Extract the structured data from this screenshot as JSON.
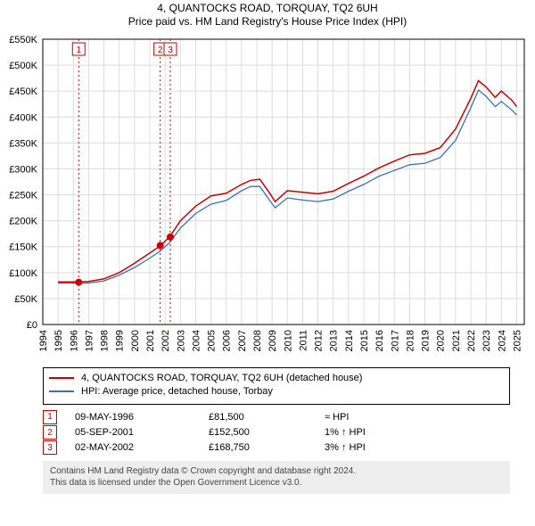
{
  "title_line1": "4, QUANTOCKS ROAD, TORQUAY, TQ2 6UH",
  "title_line2": "Price paid vs. HM Land Registry's House Price Index (HPI)",
  "title_fontsize": 12,
  "chart": {
    "type": "line",
    "background_color": "#ffffff",
    "grid_color": "#dcdcdc",
    "axis_color": "#000000",
    "x_years": [
      1994,
      1995,
      1996,
      1997,
      1998,
      1999,
      2000,
      2001,
      2002,
      2003,
      2004,
      2005,
      2006,
      2007,
      2008,
      2009,
      2010,
      2011,
      2012,
      2013,
      2014,
      2015,
      2016,
      2017,
      2018,
      2019,
      2020,
      2021,
      2022,
      2023,
      2024,
      2025
    ],
    "y_ticks": [
      0,
      50,
      100,
      150,
      200,
      250,
      300,
      350,
      400,
      450,
      500,
      550
    ],
    "y_tick_labels": [
      "£0",
      "£50K",
      "£100K",
      "£150K",
      "£200K",
      "£250K",
      "£300K",
      "£350K",
      "£400K",
      "£450K",
      "£500K",
      "£550K"
    ],
    "y_label_fontsize": 11,
    "x_label_fontsize": 11,
    "xlim": [
      1994,
      2025.5
    ],
    "ylim": [
      0,
      550
    ],
    "series": [
      {
        "name": "price_paid",
        "color": "#cc0000",
        "line_width": 1.5,
        "xy": [
          [
            1995.0,
            82
          ],
          [
            1996.3,
            82
          ],
          [
            1997.0,
            83
          ],
          [
            1998.0,
            88
          ],
          [
            1999.0,
            100
          ],
          [
            2000.0,
            118
          ],
          [
            2001.0,
            138
          ],
          [
            2001.7,
            152
          ],
          [
            2002.3,
            169
          ],
          [
            2003.0,
            200
          ],
          [
            2004.0,
            228
          ],
          [
            2005.0,
            248
          ],
          [
            2006.0,
            253
          ],
          [
            2007.0,
            270
          ],
          [
            2007.6,
            278
          ],
          [
            2008.2,
            280
          ],
          [
            2008.8,
            255
          ],
          [
            2009.2,
            237
          ],
          [
            2010.0,
            258
          ],
          [
            2011.0,
            255
          ],
          [
            2012.0,
            252
          ],
          [
            2013.0,
            257
          ],
          [
            2014.0,
            272
          ],
          [
            2015.0,
            286
          ],
          [
            2016.0,
            302
          ],
          [
            2017.0,
            315
          ],
          [
            2018.0,
            327
          ],
          [
            2019.0,
            330
          ],
          [
            2020.0,
            341
          ],
          [
            2021.0,
            377
          ],
          [
            2022.0,
            436
          ],
          [
            2022.5,
            470
          ],
          [
            2023.0,
            458
          ],
          [
            2023.6,
            438
          ],
          [
            2024.0,
            450
          ],
          [
            2024.7,
            432
          ],
          [
            2025.0,
            420
          ]
        ]
      },
      {
        "name": "hpi",
        "color": "#3a6fb7",
        "line_width": 1.3,
        "xy": [
          [
            1995.0,
            80
          ],
          [
            1996.3,
            80
          ],
          [
            1997.0,
            80
          ],
          [
            1998.0,
            84
          ],
          [
            1999.0,
            95
          ],
          [
            2000.0,
            110
          ],
          [
            2001.0,
            128
          ],
          [
            2001.7,
            142
          ],
          [
            2002.3,
            158
          ],
          [
            2003.0,
            186
          ],
          [
            2004.0,
            214
          ],
          [
            2005.0,
            232
          ],
          [
            2006.0,
            239
          ],
          [
            2007.0,
            258
          ],
          [
            2007.6,
            266
          ],
          [
            2008.2,
            266
          ],
          [
            2008.8,
            241
          ],
          [
            2009.2,
            225
          ],
          [
            2010.0,
            244
          ],
          [
            2011.0,
            240
          ],
          [
            2012.0,
            237
          ],
          [
            2013.0,
            242
          ],
          [
            2014.0,
            257
          ],
          [
            2015.0,
            270
          ],
          [
            2016.0,
            286
          ],
          [
            2017.0,
            297
          ],
          [
            2018.0,
            308
          ],
          [
            2019.0,
            311
          ],
          [
            2020.0,
            322
          ],
          [
            2021.0,
            355
          ],
          [
            2022.0,
            418
          ],
          [
            2022.5,
            452
          ],
          [
            2023.0,
            440
          ],
          [
            2023.6,
            420
          ],
          [
            2024.0,
            430
          ],
          [
            2024.7,
            413
          ],
          [
            2025.0,
            404
          ]
        ]
      }
    ],
    "sale_markers": [
      {
        "num": "1",
        "year": 1996.35,
        "price": 81.5
      },
      {
        "num": "2",
        "year": 2001.68,
        "price": 152.5
      },
      {
        "num": "3",
        "year": 2002.34,
        "price": 168.75
      }
    ],
    "marker_fill": "#cc0000",
    "marker_radius": 4,
    "vline_color": "#cc0000",
    "vline_dash": "2 3",
    "numbox_border": "#cc0000",
    "numbox_text_color": "#cc0000",
    "numbox_font": 10
  },
  "legend": {
    "border_color": "#000000",
    "items": [
      {
        "color": "#cc0000",
        "label": "4, QUANTOCKS ROAD, TORQUAY, TQ2 6UH (detached house)"
      },
      {
        "color": "#3a6fb7",
        "label": "HPI: Average price, detached house, Torbay"
      }
    ]
  },
  "sales": [
    {
      "num": "1",
      "date": "09-MAY-1996",
      "price": "£81,500",
      "delta": "≈ HPI"
    },
    {
      "num": "2",
      "date": "05-SEP-2001",
      "price": "£152,500",
      "delta": "1% ↑ HPI"
    },
    {
      "num": "3",
      "date": "02-MAY-2002",
      "price": "£168,750",
      "delta": "3% ↑ HPI"
    }
  ],
  "licence": {
    "bg": "#eeeeee",
    "line1": "Contains HM Land Registry data © Crown copyright and database right 2024.",
    "line2": "This data is licensed under the Open Government Licence v3.0."
  }
}
